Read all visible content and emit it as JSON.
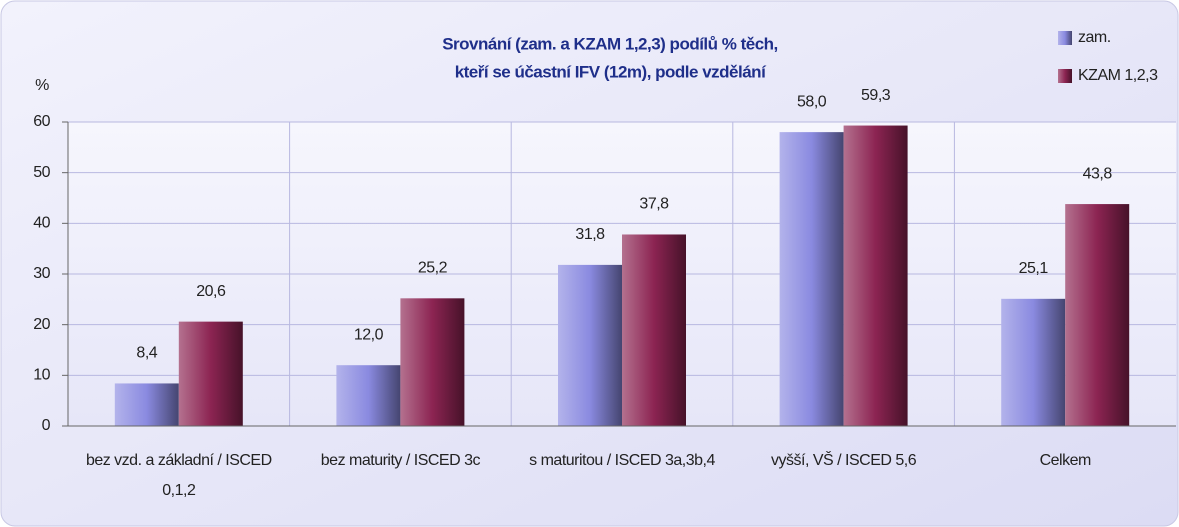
{
  "chart_data": {
    "type": "bar",
    "title": [
      "Srovnání (zam. a KZAM 1,2,3) podílů % těch,",
      "kteří se účastní IFV (12m), podle vzdělání"
    ],
    "y_label": "%",
    "categories": [
      "bez vzd. a základní / ISCED 0,1,2",
      "bez maturity / ISCED 3c",
      "s maturitou / ISCED 3a,3b,4",
      "vyšší, VŠ / ISCED 5,6",
      "Celkem"
    ],
    "series": [
      {
        "name": "zam.",
        "color": "#8a8ae0",
        "values": [
          8.4,
          12.0,
          31.8,
          58.0,
          25.1
        ],
        "value_labels": [
          "8,4",
          "12,0",
          "31,8",
          "58,0",
          "25,1"
        ]
      },
      {
        "name": "KZAM 1,2,3",
        "color": "#8c2452",
        "values": [
          20.6,
          25.2,
          37.8,
          59.3,
          43.8
        ],
        "value_labels": [
          "20,6",
          "25,2",
          "37,8",
          "59,3",
          "43,8"
        ]
      }
    ],
    "ylim": [
      0,
      60
    ],
    "yticks": [
      0,
      10,
      20,
      30,
      40,
      50,
      60
    ],
    "grid": true,
    "legend": "top-right"
  }
}
